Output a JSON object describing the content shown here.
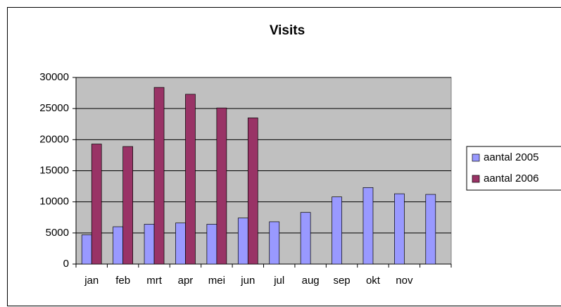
{
  "chart_data": {
    "type": "bar",
    "title": "Visits",
    "categories": [
      "jan",
      "feb",
      "mrt",
      "apr",
      "mei",
      "jun",
      "jul",
      "aug",
      "sep",
      "okt",
      "nov",
      null
    ],
    "series": [
      {
        "name": "aantal 2005",
        "color": "#9999ff",
        "values": [
          4700,
          6000,
          6400,
          6600,
          6400,
          7400,
          6800,
          8300,
          10800,
          12300,
          11300,
          11200
        ]
      },
      {
        "name": "aantal 2006",
        "color": "#993366",
        "values": [
          19300,
          18900,
          28400,
          27300,
          25100,
          23500,
          null,
          null,
          null,
          null,
          null,
          null
        ]
      }
    ],
    "ylim": [
      0,
      30000
    ],
    "yticks": [
      0,
      5000,
      10000,
      15000,
      20000,
      25000,
      30000
    ],
    "grid": true,
    "legend": "right"
  }
}
